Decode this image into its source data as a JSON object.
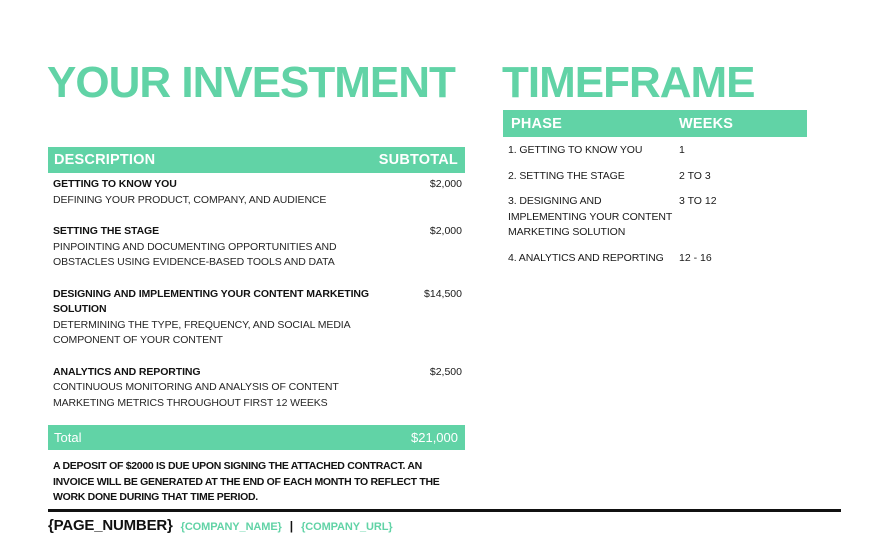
{
  "accent_color": "#61d3a6",
  "investment": {
    "title": "YOUR INVESTMENT",
    "table": {
      "headers": {
        "description": "DESCRIPTION",
        "subtotal": "SUBTOTAL"
      },
      "rows": [
        {
          "name": "GETTING TO KNOW YOU",
          "description": "DEFINING YOUR PRODUCT, COMPANY, AND AUDIENCE",
          "subtotal": "$2,000"
        },
        {
          "name": "SETTING THE STAGE",
          "description": "PINPOINTING AND DOCUMENTING OPPORTUNITIES AND OBSTACLES USING EVIDENCE-BASED TOOLS AND DATA",
          "subtotal": "$2,000"
        },
        {
          "name": "DESIGNING AND IMPLEMENTING YOUR CONTENT MARKETING SOLUTION",
          "description": "DETERMINING THE TYPE, FREQUENCY, AND SOCIAL MEDIA COMPONENT OF YOUR CONTENT",
          "subtotal": "$14,500"
        },
        {
          "name": "ANALYTICS AND REPORTING",
          "description": "CONTINUOUS MONITORING AND ANALYSIS OF CONTENT MARKETING METRICS THROUGHOUT FIRST 12 WEEKS",
          "subtotal": "$2,500"
        }
      ],
      "total_label": "Total",
      "total_value": "$21,000"
    },
    "note": "A DEPOSIT OF $2000 IS DUE UPON SIGNING THE ATTACHED CONTRACT. AN INVOICE WILL BE GENERATED AT THE END OF EACH MONTH TO REFLECT THE WORK DONE DURING THAT TIME PERIOD."
  },
  "timeframe": {
    "title": "TIMEFRAME",
    "table": {
      "headers": {
        "phase": "PHASE",
        "weeks": "WEEKS"
      },
      "rows": [
        {
          "phase": "1. GETTING TO KNOW YOU",
          "weeks": "1"
        },
        {
          "phase": "2. SETTING THE STAGE",
          "weeks": "2 TO 3"
        },
        {
          "phase": "3. DESIGNING AND IMPLEMENTING YOUR CONTENT MARKETING SOLUTION",
          "weeks": "3 TO 12"
        },
        {
          "phase": "4. ANALYTICS AND REPORTING",
          "weeks": "12 - 16"
        }
      ]
    }
  },
  "footer": {
    "page_number": "{PAGE_NUMBER}",
    "company_name": "{COMPANY_NAME}",
    "separator": "|",
    "company_url": "{COMPANY_URL}"
  }
}
